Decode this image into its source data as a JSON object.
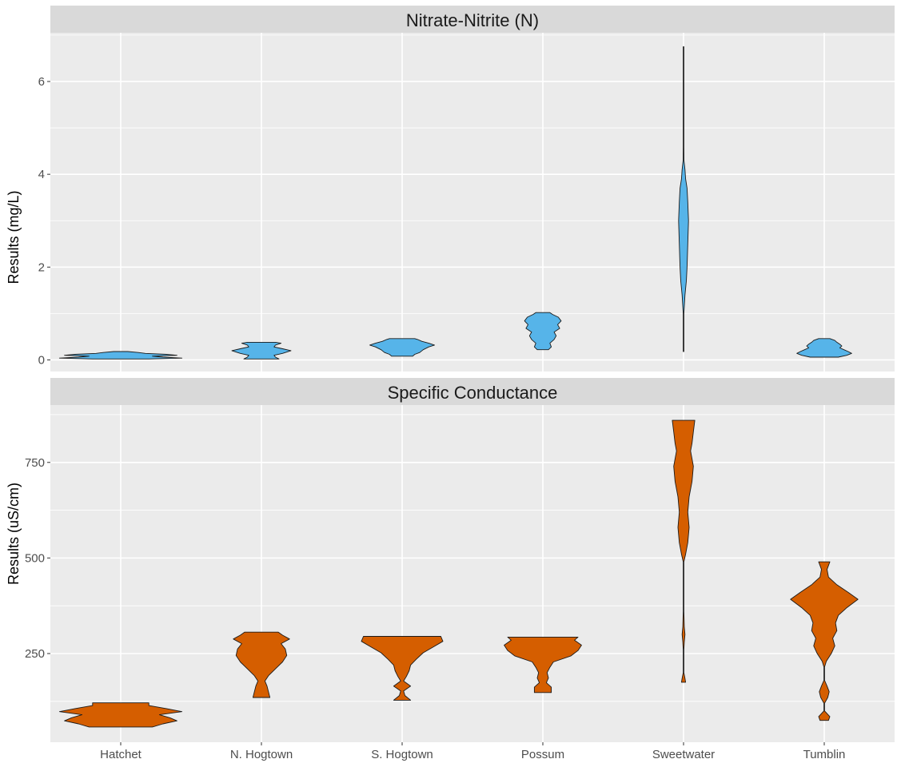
{
  "chart_data": [
    {
      "type": "violin",
      "title": "Nitrate-Nitrite (N)",
      "ylabel": "Results (mg/L)",
      "categories": [
        "Hatchet",
        "N. Hogtown",
        "S. Hogtown",
        "Possum",
        "Sweetwater",
        "Tumblin"
      ],
      "yticks": [
        0,
        2,
        4,
        6
      ],
      "ylim": [
        -0.25,
        7.05
      ],
      "fill_color": "#56B4E9",
      "grid": true,
      "violins": [
        {
          "category": "Hatchet",
          "min": 0.02,
          "max": 0.18,
          "max_width": 0.87,
          "profile": [
            [
              0.02,
              0.4
            ],
            [
              0.04,
              0.87
            ],
            [
              0.06,
              0.6
            ],
            [
              0.08,
              0.45
            ],
            [
              0.1,
              0.8
            ],
            [
              0.12,
              0.65
            ],
            [
              0.14,
              0.35
            ],
            [
              0.16,
              0.25
            ],
            [
              0.18,
              0.1
            ]
          ]
        },
        {
          "category": "N. Hogtown",
          "min": 0.02,
          "max": 0.38,
          "max_width": 0.42,
          "profile": [
            [
              0.02,
              0.25
            ],
            [
              0.06,
              0.2
            ],
            [
              0.1,
              0.18
            ],
            [
              0.14,
              0.3
            ],
            [
              0.2,
              0.42
            ],
            [
              0.24,
              0.3
            ],
            [
              0.28,
              0.18
            ],
            [
              0.32,
              0.2
            ],
            [
              0.36,
              0.28
            ],
            [
              0.38,
              0.2
            ]
          ]
        },
        {
          "category": "S. Hogtown",
          "min": 0.08,
          "max": 0.46,
          "max_width": 0.46,
          "profile": [
            [
              0.08,
              0.15
            ],
            [
              0.12,
              0.18
            ],
            [
              0.16,
              0.25
            ],
            [
              0.22,
              0.3
            ],
            [
              0.28,
              0.38
            ],
            [
              0.32,
              0.46
            ],
            [
              0.36,
              0.38
            ],
            [
              0.4,
              0.28
            ],
            [
              0.44,
              0.22
            ],
            [
              0.46,
              0.18
            ]
          ]
        },
        {
          "category": "Possum",
          "min": 0.22,
          "max": 1.02,
          "max_width": 0.26,
          "profile": [
            [
              0.22,
              0.08
            ],
            [
              0.28,
              0.12
            ],
            [
              0.36,
              0.1
            ],
            [
              0.44,
              0.16
            ],
            [
              0.52,
              0.19
            ],
            [
              0.6,
              0.16
            ],
            [
              0.68,
              0.24
            ],
            [
              0.76,
              0.21
            ],
            [
              0.84,
              0.26
            ],
            [
              0.92,
              0.22
            ],
            [
              0.98,
              0.14
            ],
            [
              1.02,
              0.1
            ]
          ]
        },
        {
          "category": "Sweetwater",
          "min": 0.18,
          "max": 6.75,
          "max_width": 0.07,
          "profile": [
            [
              0.18,
              0.004
            ],
            [
              1.0,
              0.004
            ],
            [
              1.4,
              0.02
            ],
            [
              1.7,
              0.04
            ],
            [
              2.0,
              0.05
            ],
            [
              2.5,
              0.06
            ],
            [
              3.0,
              0.07
            ],
            [
              3.4,
              0.06
            ],
            [
              3.7,
              0.05
            ],
            [
              3.9,
              0.03
            ],
            [
              4.1,
              0.02
            ],
            [
              4.3,
              0.006
            ],
            [
              4.6,
              0.004
            ],
            [
              6.75,
              0.004
            ]
          ]
        },
        {
          "category": "Tumblin",
          "min": 0.06,
          "max": 0.46,
          "max_width": 0.39,
          "profile": [
            [
              0.06,
              0.2
            ],
            [
              0.1,
              0.32
            ],
            [
              0.14,
              0.39
            ],
            [
              0.18,
              0.34
            ],
            [
              0.22,
              0.28
            ],
            [
              0.26,
              0.22
            ],
            [
              0.3,
              0.25
            ],
            [
              0.34,
              0.22
            ],
            [
              0.38,
              0.18
            ],
            [
              0.42,
              0.15
            ],
            [
              0.46,
              0.08
            ]
          ]
        }
      ]
    },
    {
      "type": "violin",
      "title": "Specific Conductance",
      "ylabel": "Results (uS/cm)",
      "categories": [
        "Hatchet",
        "N. Hogtown",
        "S. Hogtown",
        "Possum",
        "Sweetwater",
        "Tumblin"
      ],
      "yticks": [
        250,
        500,
        750
      ],
      "ylim": [
        18,
        900
      ],
      "fill_color": "#D55E00",
      "grid": true,
      "violins": [
        {
          "category": "Hatchet",
          "min": 58,
          "max": 121,
          "max_width": 0.87,
          "profile": [
            [
              58,
              0.45
            ],
            [
              66,
              0.6
            ],
            [
              74,
              0.8
            ],
            [
              82,
              0.7
            ],
            [
              90,
              0.55
            ],
            [
              98,
              0.87
            ],
            [
              106,
              0.65
            ],
            [
              114,
              0.4
            ],
            [
              121,
              0.4
            ]
          ]
        },
        {
          "category": "N. Hogtown",
          "min": 135,
          "max": 306,
          "max_width": 0.4,
          "profile": [
            [
              135,
              0.12
            ],
            [
              150,
              0.1
            ],
            [
              165,
              0.08
            ],
            [
              178,
              0.05
            ],
            [
              192,
              0.1
            ],
            [
              210,
              0.2
            ],
            [
              228,
              0.3
            ],
            [
              245,
              0.36
            ],
            [
              262,
              0.34
            ],
            [
              276,
              0.28
            ],
            [
              288,
              0.4
            ],
            [
              298,
              0.3
            ],
            [
              306,
              0.24
            ]
          ]
        },
        {
          "category": "S. Hogtown",
          "min": 128,
          "max": 295,
          "max_width": 0.58,
          "profile": [
            [
              128,
              0.12
            ],
            [
              140,
              0.04
            ],
            [
              152,
              0.02
            ],
            [
              165,
              0.12
            ],
            [
              178,
              0.02
            ],
            [
              190,
              0.06
            ],
            [
              205,
              0.1
            ],
            [
              220,
              0.12
            ],
            [
              235,
              0.2
            ],
            [
              252,
              0.3
            ],
            [
              268,
              0.45
            ],
            [
              282,
              0.58
            ],
            [
              295,
              0.55
            ]
          ]
        },
        {
          "category": "Possum",
          "min": 148,
          "max": 293,
          "max_width": 0.55,
          "profile": [
            [
              148,
              0.12
            ],
            [
              162,
              0.12
            ],
            [
              174,
              0.05
            ],
            [
              186,
              0.08
            ],
            [
              200,
              0.06
            ],
            [
              214,
              0.1
            ],
            [
              228,
              0.15
            ],
            [
              244,
              0.4
            ],
            [
              258,
              0.5
            ],
            [
              272,
              0.55
            ],
            [
              285,
              0.45
            ],
            [
              293,
              0.5
            ]
          ]
        },
        {
          "category": "Sweetwater",
          "min": 175,
          "max": 860,
          "max_width": 0.16,
          "profile": [
            [
              175,
              0.03
            ],
            [
              185,
              0.02
            ],
            [
              200,
              0.004
            ],
            [
              260,
              0.004
            ],
            [
              280,
              0.01
            ],
            [
              300,
              0.02
            ],
            [
              320,
              0.01
            ],
            [
              360,
              0.004
            ],
            [
              420,
              0.004
            ],
            [
              490,
              0.004
            ],
            [
              510,
              0.03
            ],
            [
              540,
              0.06
            ],
            [
              580,
              0.08
            ],
            [
              620,
              0.06
            ],
            [
              660,
              0.08
            ],
            [
              700,
              0.12
            ],
            [
              740,
              0.14
            ],
            [
              780,
              0.1
            ],
            [
              800,
              0.12
            ],
            [
              830,
              0.14
            ],
            [
              860,
              0.16
            ]
          ]
        },
        {
          "category": "Tumblin",
          "min": 75,
          "max": 490,
          "max_width": 0.48,
          "profile": [
            [
              75,
              0.06
            ],
            [
              85,
              0.08
            ],
            [
              100,
              0.004
            ],
            [
              120,
              0.004
            ],
            [
              135,
              0.05
            ],
            [
              150,
              0.07
            ],
            [
              165,
              0.04
            ],
            [
              180,
              0.004
            ],
            [
              215,
              0.004
            ],
            [
              230,
              0.03
            ],
            [
              250,
              0.1
            ],
            [
              270,
              0.15
            ],
            [
              290,
              0.12
            ],
            [
              310,
              0.18
            ],
            [
              330,
              0.16
            ],
            [
              350,
              0.2
            ],
            [
              370,
              0.32
            ],
            [
              392,
              0.48
            ],
            [
              410,
              0.34
            ],
            [
              430,
              0.18
            ],
            [
              450,
              0.06
            ],
            [
              470,
              0.04
            ],
            [
              490,
              0.08
            ]
          ]
        }
      ]
    }
  ]
}
